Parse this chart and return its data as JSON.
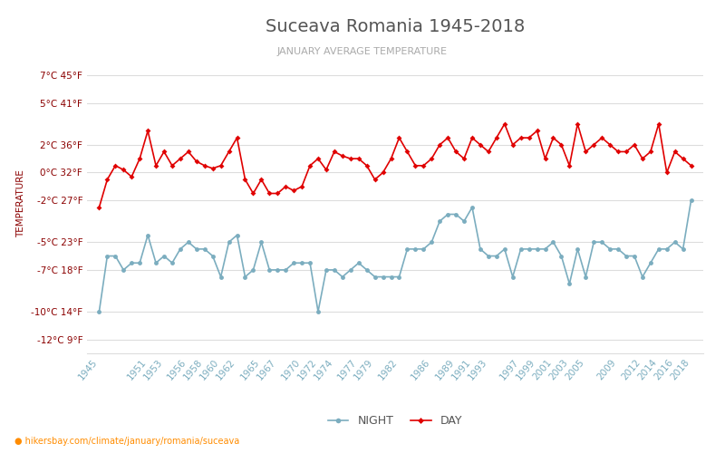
{
  "title": "Suceava Romania 1945-2018",
  "subtitle": "JANUARY AVERAGE TEMPERATURE",
  "ylabel": "TEMPERATURE",
  "website": "hikersbay.com/climate/january/romania/suceava",
  "night_label": "NIGHT",
  "day_label": "DAY",
  "night_color": "#7BADBF",
  "day_color": "#E00000",
  "title_color": "#555555",
  "subtitle_color": "#AAAAAA",
  "axis_label_color": "#8B0000",
  "xtick_color": "#7BADBF",
  "grid_color": "#DDDDDD",
  "bg_color": "#FFFFFF",
  "ylim": [
    -13,
    8.5
  ],
  "yticks_c": [
    -12,
    -10,
    -7,
    -5,
    -2,
    0,
    2,
    5,
    7
  ],
  "ytick_labels": [
    "-12°C 9°F",
    "-10°C 14°F",
    "-7°C 18°F",
    "-5°C 23°F",
    "-2°C 27°F",
    "0°C 32°F",
    "2°C 36°F",
    "5°C 41°F",
    "7°C 45°F"
  ],
  "xtick_labels": [
    "1945",
    "1951",
    "1953",
    "1956",
    "1958",
    "1960",
    "1962",
    "1965",
    "1967",
    "1970",
    "1972",
    "1974",
    "1977",
    "1979",
    "1982",
    "1986",
    "1989",
    "1991",
    "1993",
    "1997",
    "1999",
    "2001",
    "2003",
    "2005",
    "2009",
    "2012",
    "2014",
    "2016",
    "2018"
  ],
  "years": [
    1945,
    1946,
    1947,
    1948,
    1949,
    1950,
    1951,
    1952,
    1953,
    1954,
    1955,
    1956,
    1957,
    1958,
    1959,
    1960,
    1961,
    1962,
    1963,
    1964,
    1965,
    1966,
    1967,
    1968,
    1969,
    1970,
    1971,
    1972,
    1973,
    1974,
    1975,
    1976,
    1977,
    1978,
    1979,
    1980,
    1981,
    1982,
    1983,
    1984,
    1985,
    1986,
    1987,
    1988,
    1989,
    1990,
    1991,
    1992,
    1993,
    1994,
    1995,
    1996,
    1997,
    1998,
    1999,
    2000,
    2001,
    2002,
    2003,
    2004,
    2005,
    2006,
    2007,
    2008,
    2009,
    2010,
    2011,
    2012,
    2013,
    2014,
    2015,
    2016,
    2017,
    2018
  ],
  "day": [
    -2.5,
    -0.5,
    0.5,
    0.2,
    -0.3,
    1.0,
    3.0,
    0.5,
    1.5,
    0.5,
    1.0,
    1.5,
    0.8,
    0.5,
    0.3,
    0.5,
    1.5,
    2.5,
    -0.5,
    -1.5,
    -0.5,
    -1.5,
    -1.5,
    -1.0,
    -1.3,
    -1.0,
    0.5,
    1.0,
    0.2,
    1.5,
    1.2,
    1.0,
    1.0,
    0.5,
    -0.5,
    0.0,
    1.0,
    2.5,
    1.5,
    0.5,
    0.5,
    1.0,
    2.0,
    2.5,
    1.5,
    1.0,
    2.5,
    2.0,
    1.5,
    2.5,
    3.5,
    2.0,
    2.5,
    2.5,
    3.0,
    1.0,
    2.5,
    2.0,
    0.5,
    3.5,
    1.5,
    2.0,
    2.5,
    2.0,
    1.5,
    1.5,
    2.0,
    1.0,
    1.5,
    3.5,
    0.0,
    1.5,
    1.0,
    0.5
  ],
  "night": [
    -10.0,
    -6.0,
    -6.0,
    -7.0,
    -6.5,
    -6.5,
    -4.5,
    -6.5,
    -6.0,
    -6.5,
    -5.5,
    -5.0,
    -5.5,
    -5.5,
    -6.0,
    -7.5,
    -5.0,
    -4.5,
    -7.5,
    -7.0,
    -5.0,
    -7.0,
    -7.0,
    -7.0,
    -6.5,
    -6.5,
    -6.5,
    -10.0,
    -7.0,
    -7.0,
    -7.5,
    -7.0,
    -6.5,
    -7.0,
    -7.5,
    -7.5,
    -7.5,
    -7.5,
    -5.5,
    -5.5,
    -5.5,
    -5.0,
    -3.5,
    -3.0,
    -3.0,
    -3.5,
    -2.5,
    -5.5,
    -6.0,
    -6.0,
    -5.5,
    -7.5,
    -5.5,
    -5.5,
    -5.5,
    -5.5,
    -5.0,
    -6.0,
    -8.0,
    -5.5,
    -7.5,
    -5.0,
    -5.0,
    -5.5,
    -5.5,
    -6.0,
    -6.0,
    -7.5,
    -6.5,
    -5.5,
    -5.5,
    -5.0,
    -5.5,
    -2.0
  ]
}
